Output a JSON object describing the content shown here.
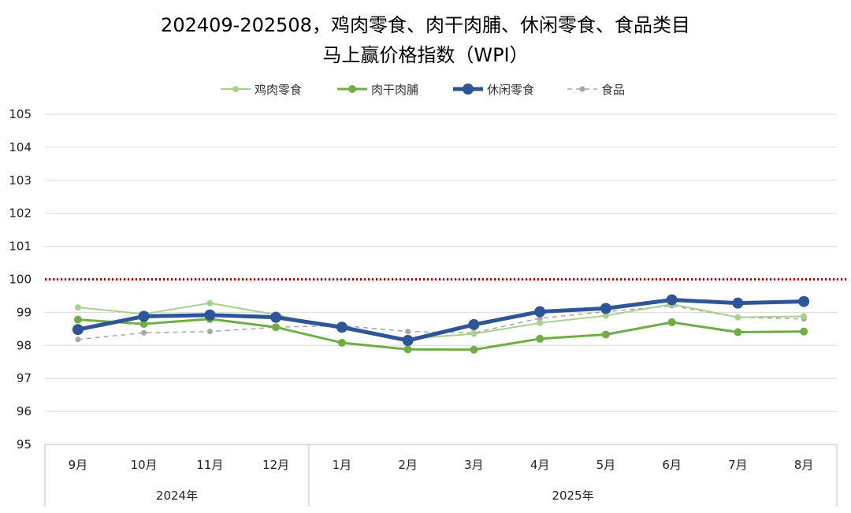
{
  "chart_data": {
    "type": "line",
    "title_line1": "202409-202508，鸡肉零食、肉干肉脯、休闲零食、食品类目",
    "title_line2": "马上赢价格指数（WPI）",
    "categories": [
      "9月",
      "10月",
      "11月",
      "12月",
      "1月",
      "2月",
      "3月",
      "4月",
      "5月",
      "6月",
      "7月",
      "8月"
    ],
    "groups": [
      {
        "label": "2024年",
        "span": 4
      },
      {
        "label": "2025年",
        "span": 8
      }
    ],
    "ylim": [
      95,
      105
    ],
    "yticks": [
      "95",
      "96",
      "97",
      "98",
      "99",
      "100",
      "101",
      "102",
      "103",
      "104",
      "105"
    ],
    "reference_line": {
      "value": 100,
      "color": "#c00000"
    },
    "grid": true,
    "legend_position": "top",
    "series": [
      {
        "name": "鸡肉零食",
        "color": "#a9d18e",
        "values": [
          99.15,
          98.95,
          99.28,
          98.93,
          98.5,
          98.2,
          98.35,
          98.68,
          98.9,
          99.25,
          98.85,
          98.88
        ]
      },
      {
        "name": "肉干肉脯",
        "color": "#70ad47",
        "values": [
          98.78,
          98.65,
          98.8,
          98.55,
          98.08,
          97.88,
          97.87,
          98.2,
          98.33,
          98.7,
          98.4,
          98.42
        ]
      },
      {
        "name": "休闲零食",
        "color": "#2f5597",
        "values": [
          98.48,
          98.88,
          98.92,
          98.85,
          98.55,
          98.15,
          98.63,
          99.02,
          99.12,
          99.38,
          99.28,
          99.33
        ]
      },
      {
        "name": "食品",
        "color": "#a6a6a6",
        "values": [
          98.18,
          98.38,
          98.42,
          98.55,
          98.6,
          98.42,
          98.38,
          98.82,
          99.02,
          99.2,
          98.85,
          98.8
        ]
      }
    ]
  }
}
